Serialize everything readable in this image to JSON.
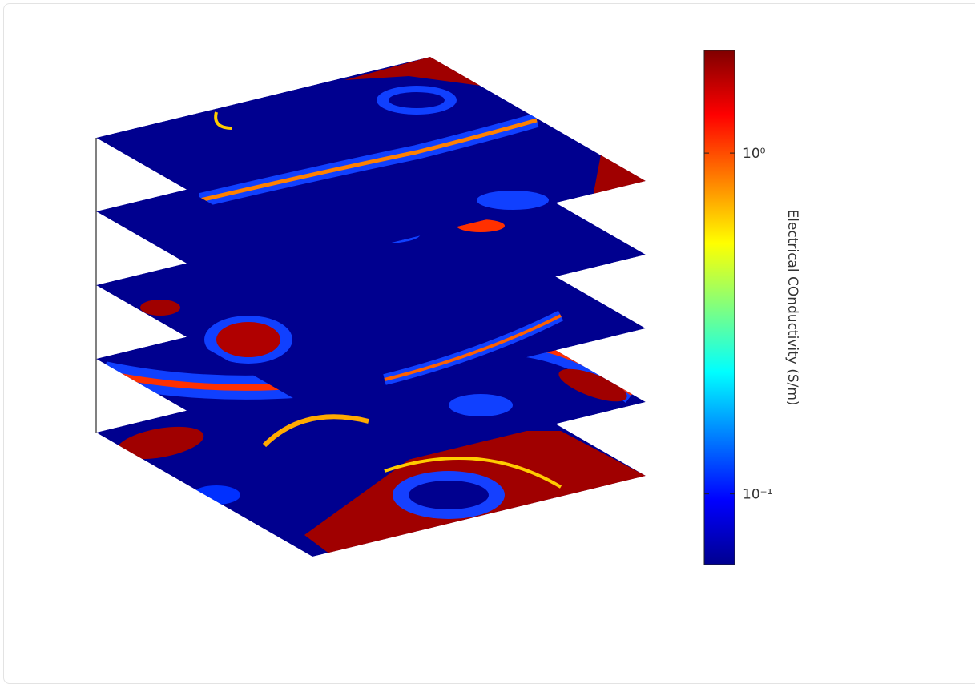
{
  "chart_data": {
    "type": "slice",
    "colorbar": {
      "label": "Electrical COnductivity (S/m)",
      "scale": "log",
      "colormap": "jet",
      "clim": [
        0.062,
        2.0
      ],
      "ticks": [
        {
          "value": 0.1,
          "label": "10⁻¹"
        },
        {
          "value": 1,
          "label": "10⁰"
        }
      ]
    }
  }
}
